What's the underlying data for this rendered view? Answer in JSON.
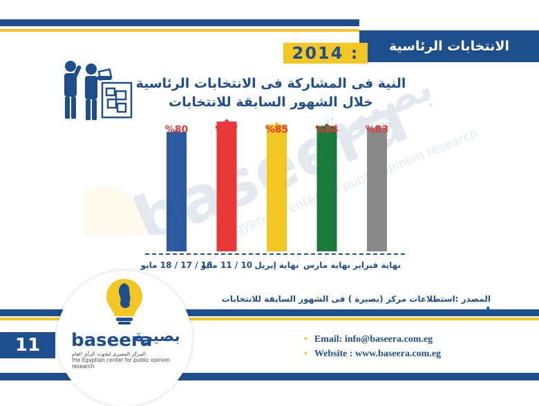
{
  "header": {
    "section_title": "الانتخابات الرئاسية",
    "year": "2014 :"
  },
  "chart_data": {
    "type": "bar",
    "title_line1": "النية فى المشاركة فى الانتخابات الرئاسية",
    "title_line2": "خلال الشهور السابقة للانتخابات",
    "categories": [
      "16 / 17 / 18 مايو",
      "10 / 11 مايو",
      "نهاية إبريل",
      "نهاية مارس",
      "نهاية فبراير"
    ],
    "values": [
      80,
      87,
      85,
      84,
      83
    ],
    "value_labels": [
      "%80",
      "%87",
      "%85",
      "%84",
      "%83"
    ],
    "colors": [
      "#2a5aa0",
      "#e8383a",
      "#f3c623",
      "#1a7a3a",
      "#8a8a8a"
    ],
    "ylim": [
      0,
      100
    ]
  },
  "source_text": "المصدر :استطلاعات مركز (بصيرة ) فى الشهور السابقة للانتخابات",
  "source_bullet": "•",
  "page_number": "11",
  "logo": {
    "latin": "baseera",
    "arabic": "بصيرة",
    "arabic_sub": "المركز المصرى لبحوث الرأى العام",
    "english_sub": "the Egyptian center for public opinion research"
  },
  "contact": {
    "bullet": "•",
    "email": "Email: info@baseera.com.eg",
    "website": "Website : www.baseera.com.eg"
  },
  "watermark": {
    "latin": "baseera",
    "arabic": "بصيرة",
    "tag": "the Egyptian center for public opinion research"
  }
}
